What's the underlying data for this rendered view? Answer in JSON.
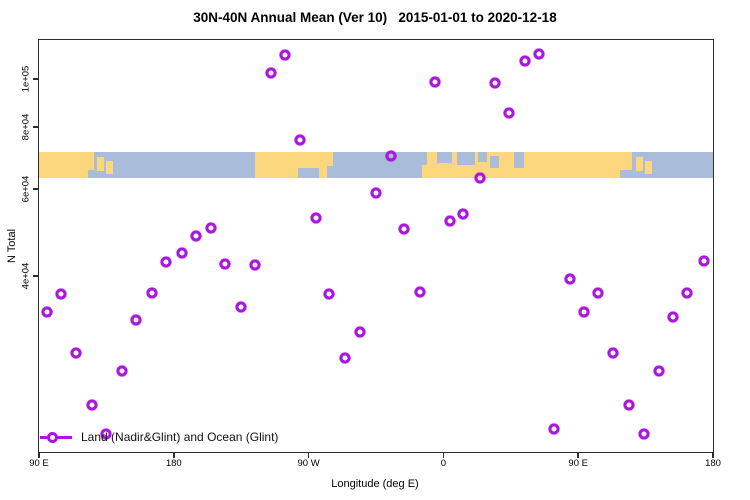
{
  "title": "30N-40N Annual Mean (Ver 10)   2015-01-01 to 2020-12-18",
  "colors": {
    "point": "#aa16dd",
    "ocean": "#a9bddb",
    "land": "#fcd77e",
    "axis": "#2e2e2e",
    "background": "#ffffff"
  },
  "legend": {
    "label": "Land (Nadir&Glint) and Ocean (Glint)",
    "position": "bottom-left",
    "marker": "open-circle-on-line"
  },
  "chart_data": {
    "type": "scatter",
    "title": "30N-40N Annual Mean (Ver 10)   2015-01-01 to 2020-12-18",
    "xlabel": "Longitude (deg E)",
    "ylabel": "N Total",
    "grid": false,
    "x_axis": {
      "lim": [
        90,
        540
      ],
      "wraparound": true,
      "ticks": [
        {
          "pos": 90,
          "label": "90 E"
        },
        {
          "pos": 180,
          "label": "180"
        },
        {
          "pos": 270,
          "label": "90 W"
        },
        {
          "pos": 360,
          "label": "0"
        },
        {
          "pos": 450,
          "label": "90 E"
        },
        {
          "pos": 540,
          "label": "180"
        }
      ]
    },
    "y_axis": {
      "scale": "log",
      "lim": [
        17600,
        120000
      ],
      "ticks": [
        {
          "value": 40000,
          "label": "4e+04"
        },
        {
          "value": 60000,
          "label": "6e+04"
        },
        {
          "value": 80000,
          "label": "8e+04"
        },
        {
          "value": 100000,
          "label": "1e+05"
        }
      ]
    },
    "series": [
      {
        "name": "Land (Nadir&Glint) and Ocean (Glint)",
        "marker": "open-circle",
        "color": "#aa16dd",
        "points": [
          {
            "lon": 95.3,
            "n": 33800
          },
          {
            "lon": 104.7,
            "n": 36800
          },
          {
            "lon": 114.7,
            "n": 27900
          },
          {
            "lon": 125.4,
            "n": 21900
          },
          {
            "lon": 134.7,
            "n": 19100
          },
          {
            "lon": 145.4,
            "n": 25700
          },
          {
            "lon": 154.8,
            "n": 32600
          },
          {
            "lon": 165.4,
            "n": 37000
          },
          {
            "lon": 174.8,
            "n": 42700
          },
          {
            "lon": 185.5,
            "n": 44500
          },
          {
            "lon": 194.8,
            "n": 48200
          },
          {
            "lon": 204.8,
            "n": 50000
          },
          {
            "lon": 214.2,
            "n": 42300
          },
          {
            "lon": 224.9,
            "n": 34600
          },
          {
            "lon": 234.2,
            "n": 42100
          },
          {
            "lon": 244.9,
            "n": 102800
          },
          {
            "lon": 254.2,
            "n": 111800
          },
          {
            "lon": 264.3,
            "n": 75300
          },
          {
            "lon": 274.9,
            "n": 52400
          },
          {
            "lon": 283.6,
            "n": 36800
          },
          {
            "lon": 294.3,
            "n": 27300
          },
          {
            "lon": 304.3,
            "n": 30800
          },
          {
            "lon": 315.0,
            "n": 58800
          },
          {
            "lon": 325.0,
            "n": 69900
          },
          {
            "lon": 333.7,
            "n": 49800
          },
          {
            "lon": 344.4,
            "n": 37100
          },
          {
            "lon": 354.4,
            "n": 98600
          },
          {
            "lon": 364.4,
            "n": 51700
          },
          {
            "lon": 373.1,
            "n": 53400
          },
          {
            "lon": 384.4,
            "n": 63100
          },
          {
            "lon": 394.5,
            "n": 98200
          },
          {
            "lon": 403.8,
            "n": 85300
          },
          {
            "lon": 414.5,
            "n": 108700
          },
          {
            "lon": 423.9,
            "n": 112300
          },
          {
            "lon": 433.9,
            "n": 19600
          },
          {
            "lon": 444.5,
            "n": 39400
          },
          {
            "lon": 453.9,
            "n": 33800
          },
          {
            "lon": 463.2,
            "n": 37000
          },
          {
            "lon": 473.2,
            "n": 27900
          },
          {
            "lon": 483.9,
            "n": 21900
          },
          {
            "lon": 493.9,
            "n": 19100
          },
          {
            "lon": 504.0,
            "n": 25700
          },
          {
            "lon": 513.3,
            "n": 33000
          },
          {
            "lon": 522.7,
            "n": 37000
          },
          {
            "lon": 534.0,
            "n": 42900
          }
        ]
      }
    ],
    "map_band": {
      "description": "world coastline strip for 30N-40N latitude band",
      "value_top": 71200,
      "value_bottom": 63100,
      "ocean_color": "#a9bddb",
      "land_color": "#fcd77e",
      "land_segments": [
        {
          "from": 90,
          "to": 122.5
        },
        {
          "from": 122.5,
          "to": 127,
          "top": 0,
          "h": 0.7
        },
        {
          "from": 128.5,
          "to": 133.5,
          "top": 0.2,
          "h": 0.55
        },
        {
          "from": 134.5,
          "to": 139.5,
          "top": 0.35,
          "h": 0.5
        },
        {
          "from": 234,
          "to": 282
        },
        {
          "from": 282,
          "to": 286,
          "top": 0,
          "h": 0.55
        },
        {
          "from": 346,
          "to": 349,
          "top": 0.5,
          "h": 0.5
        },
        {
          "from": 349,
          "to": 478
        },
        {
          "from": 478,
          "to": 486,
          "top": 0,
          "h": 0.7
        },
        {
          "from": 488.5,
          "to": 493.5,
          "top": 0.2,
          "h": 0.55
        },
        {
          "from": 494.5,
          "to": 499.5,
          "top": 0.35,
          "h": 0.5
        }
      ],
      "ocean_patches": [
        {
          "from": 263,
          "to": 277,
          "top": 0.62,
          "h": 0.38
        },
        {
          "from": 356,
          "to": 366,
          "top": 0,
          "h": 0.42
        },
        {
          "from": 369,
          "to": 381,
          "top": 0,
          "h": 0.5
        },
        {
          "from": 383,
          "to": 389,
          "top": 0,
          "h": 0.38
        },
        {
          "from": 391,
          "to": 397,
          "top": 0.15,
          "h": 0.45
        },
        {
          "from": 407,
          "to": 414,
          "top": 0,
          "h": 0.62
        }
      ]
    }
  }
}
